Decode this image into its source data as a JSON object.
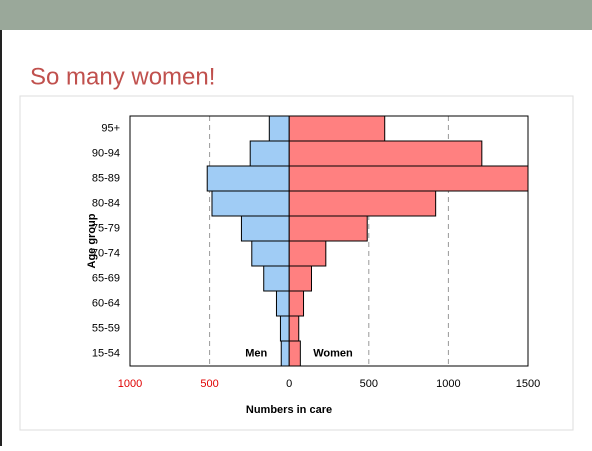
{
  "chart_data": {
    "type": "pyramid",
    "title": "So many women!",
    "categories": [
      "95+",
      "90-94",
      "85-89",
      "80-84",
      "75-79",
      "70-74",
      "65-69",
      "60-64",
      "55-59",
      "15-54"
    ],
    "series": [
      {
        "name": "Men",
        "color": "#a0ccf5",
        "values": [
          -125,
          -245,
          -515,
          -485,
          -300,
          -235,
          -160,
          -80,
          -55,
          -50
        ]
      },
      {
        "name": "Women",
        "color": "#ff8080",
        "values": [
          600,
          1210,
          1500,
          920,
          490,
          230,
          140,
          90,
          60,
          70
        ]
      }
    ],
    "xlabel": "Numbers in care",
    "ylabel": "Age group",
    "xlim": [
      -1000,
      1500
    ],
    "xticks": [
      {
        "value": -1000,
        "label": "1000",
        "color": "#e00000"
      },
      {
        "value": -500,
        "label": "500",
        "color": "#e00000"
      },
      0,
      500,
      1000,
      1500
    ],
    "grid": true
  }
}
